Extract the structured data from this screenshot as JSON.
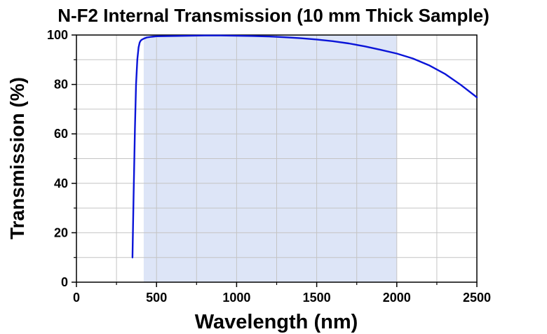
{
  "chart_data": {
    "type": "line",
    "title": "N-F2 Internal Transmission (10 mm Thick Sample)",
    "xlabel": "Wavelength (nm)",
    "ylabel": "Transmission (%)",
    "xlim": [
      0,
      2500
    ],
    "ylim": [
      0,
      100
    ],
    "x_ticks": [
      0,
      500,
      1000,
      1500,
      2000,
      2500
    ],
    "y_ticks": [
      0,
      20,
      40,
      60,
      80,
      100
    ],
    "grid": true,
    "highlight_band": {
      "x_start": 420,
      "x_end": 2000,
      "color": "#dde5f7"
    },
    "series": [
      {
        "color": "#0a14d8",
        "x": [
          350,
          357,
          365,
          372,
          380,
          388,
          395,
          402,
          410,
          420,
          440,
          470,
          500,
          600,
          700,
          800,
          900,
          1000,
          1100,
          1200,
          1300,
          1400,
          1500,
          1600,
          1700,
          1800,
          1900,
          2000,
          2100,
          2200,
          2300,
          2400,
          2500
        ],
        "y": [
          10,
          35,
          62,
          80,
          90,
          95,
          97,
          97.8,
          98.2,
          98.5,
          99.0,
          99.3,
          99.5,
          99.6,
          99.7,
          99.8,
          99.8,
          99.7,
          99.6,
          99.4,
          99.1,
          98.7,
          98.2,
          97.5,
          96.6,
          95.4,
          94.0,
          92.5,
          90.5,
          87.8,
          84.3,
          79.8,
          74.8
        ]
      }
    ]
  }
}
